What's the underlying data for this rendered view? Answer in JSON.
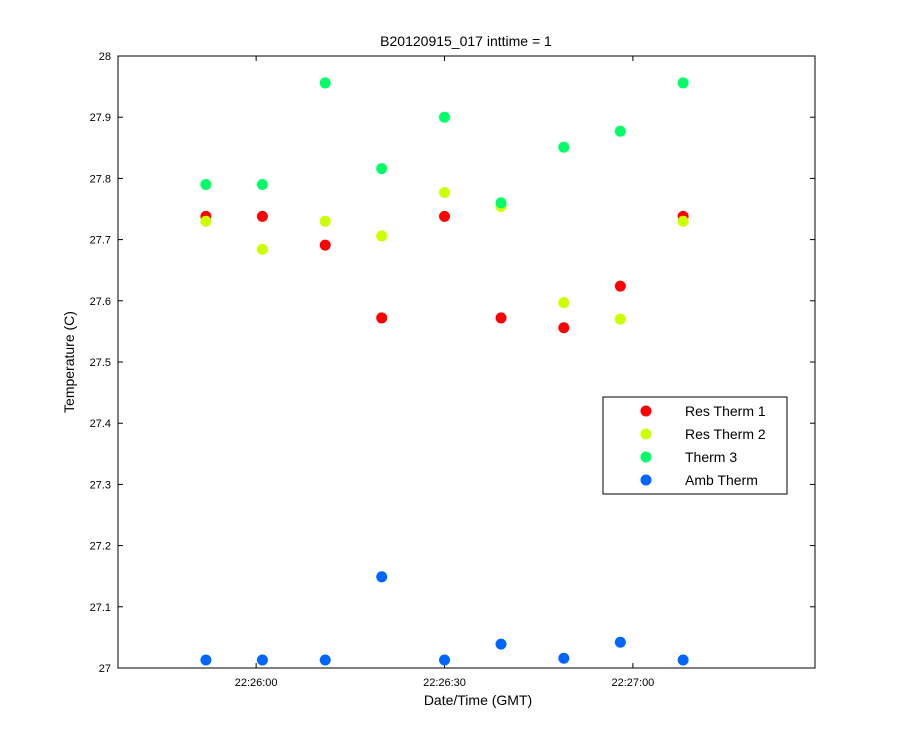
{
  "chart_data": {
    "type": "scatter",
    "title": "B20120915_017 inttime = 1",
    "xlabel": "Date/Time (GMT)",
    "ylabel": "Temperature (C)",
    "x_axis": {
      "kind": "time",
      "range": [
        "22:25:38",
        "22:27:29"
      ],
      "ticks": [
        "22:26:00",
        "22:26:30",
        "22:27:00"
      ]
    },
    "y_axis": {
      "range": [
        27,
        28
      ],
      "ticks": [
        "27",
        "27.1",
        "27.2",
        "27.3",
        "27.4",
        "27.5",
        "27.6",
        "27.7",
        "27.8",
        "27.9",
        "28"
      ]
    },
    "grid": false,
    "legend_position": "right",
    "x": [
      "22:25:52",
      "22:26:01",
      "22:26:11",
      "22:26:20",
      "22:26:30",
      "22:26:39",
      "22:26:49",
      "22:26:58",
      "22:27:08"
    ],
    "series": [
      {
        "name": "Res Therm 1",
        "color": "#ff0000",
        "values": [
          27.738,
          27.738,
          27.691,
          27.572,
          27.738,
          27.572,
          27.556,
          27.624,
          27.738
        ]
      },
      {
        "name": "Res Therm 2",
        "color": "#ccff00",
        "values": [
          27.73,
          27.684,
          27.73,
          27.706,
          27.777,
          27.754,
          27.597,
          27.57,
          27.73
        ]
      },
      {
        "name": "Therm 3",
        "color": "#00ff66",
        "values": [
          27.79,
          27.79,
          27.956,
          27.816,
          27.9,
          27.76,
          27.851,
          27.877,
          27.956
        ]
      },
      {
        "name": "Amb Therm",
        "color": "#0066ff",
        "values": [
          27.013,
          27.013,
          27.013,
          27.149,
          27.013,
          27.039,
          27.016,
          27.042,
          27.013
        ]
      }
    ]
  }
}
